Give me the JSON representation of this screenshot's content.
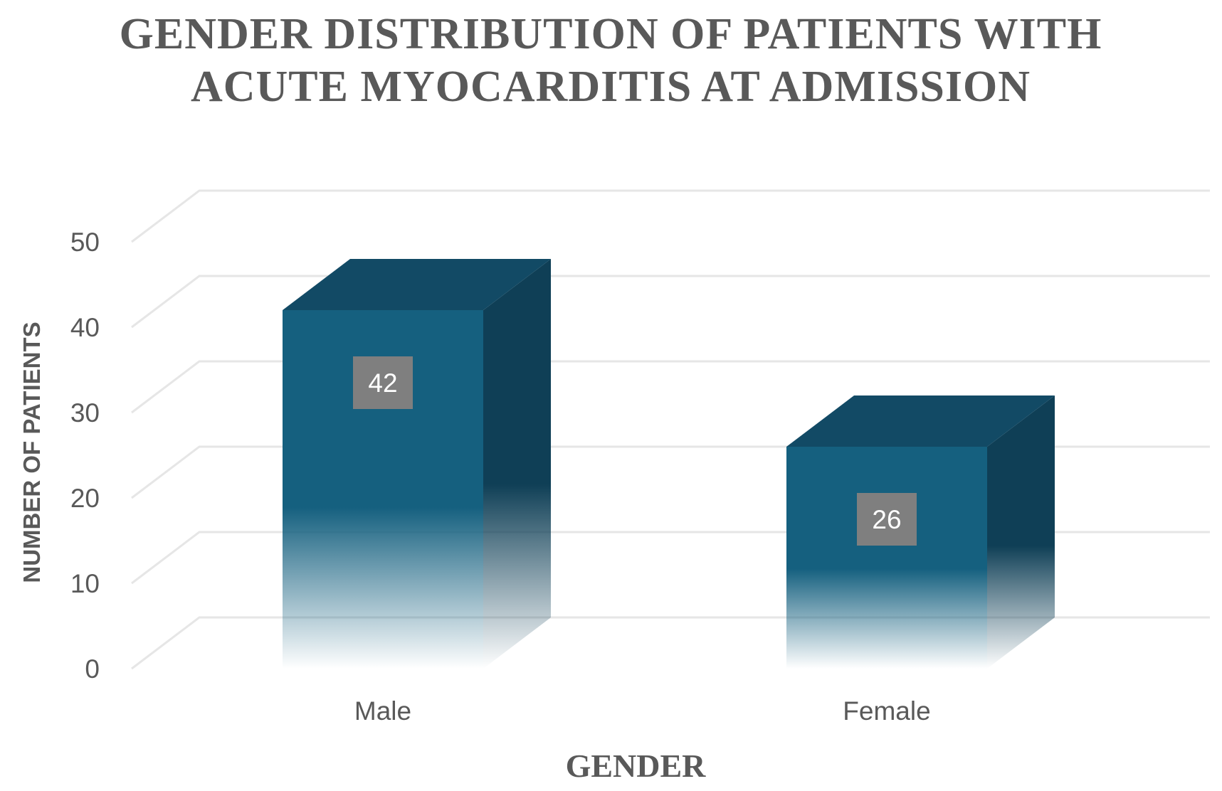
{
  "colors": {
    "bar_front": "#15607f",
    "bar_side": "#0f3f56",
    "bar_top": "#124a65",
    "label_box": "#7f7f7f",
    "text": "#595959"
  },
  "chart_data": {
    "type": "bar",
    "title_lines": [
      "GENDER DISTRIBUTION OF PATIENTS WITH",
      "ACUTE MYOCARDITIS AT ADMISSION"
    ],
    "categories": [
      "Male",
      "Female"
    ],
    "values": [
      42,
      26
    ],
    "data_labels": [
      "42",
      "26"
    ],
    "xlabel": "GENDER",
    "ylabel": "NUMBER OF PATIENTS",
    "ylim": [
      0,
      50
    ],
    "yticks": [
      "0",
      "10",
      "20",
      "30",
      "40",
      "50"
    ],
    "grid": true,
    "style": "3d-column"
  }
}
